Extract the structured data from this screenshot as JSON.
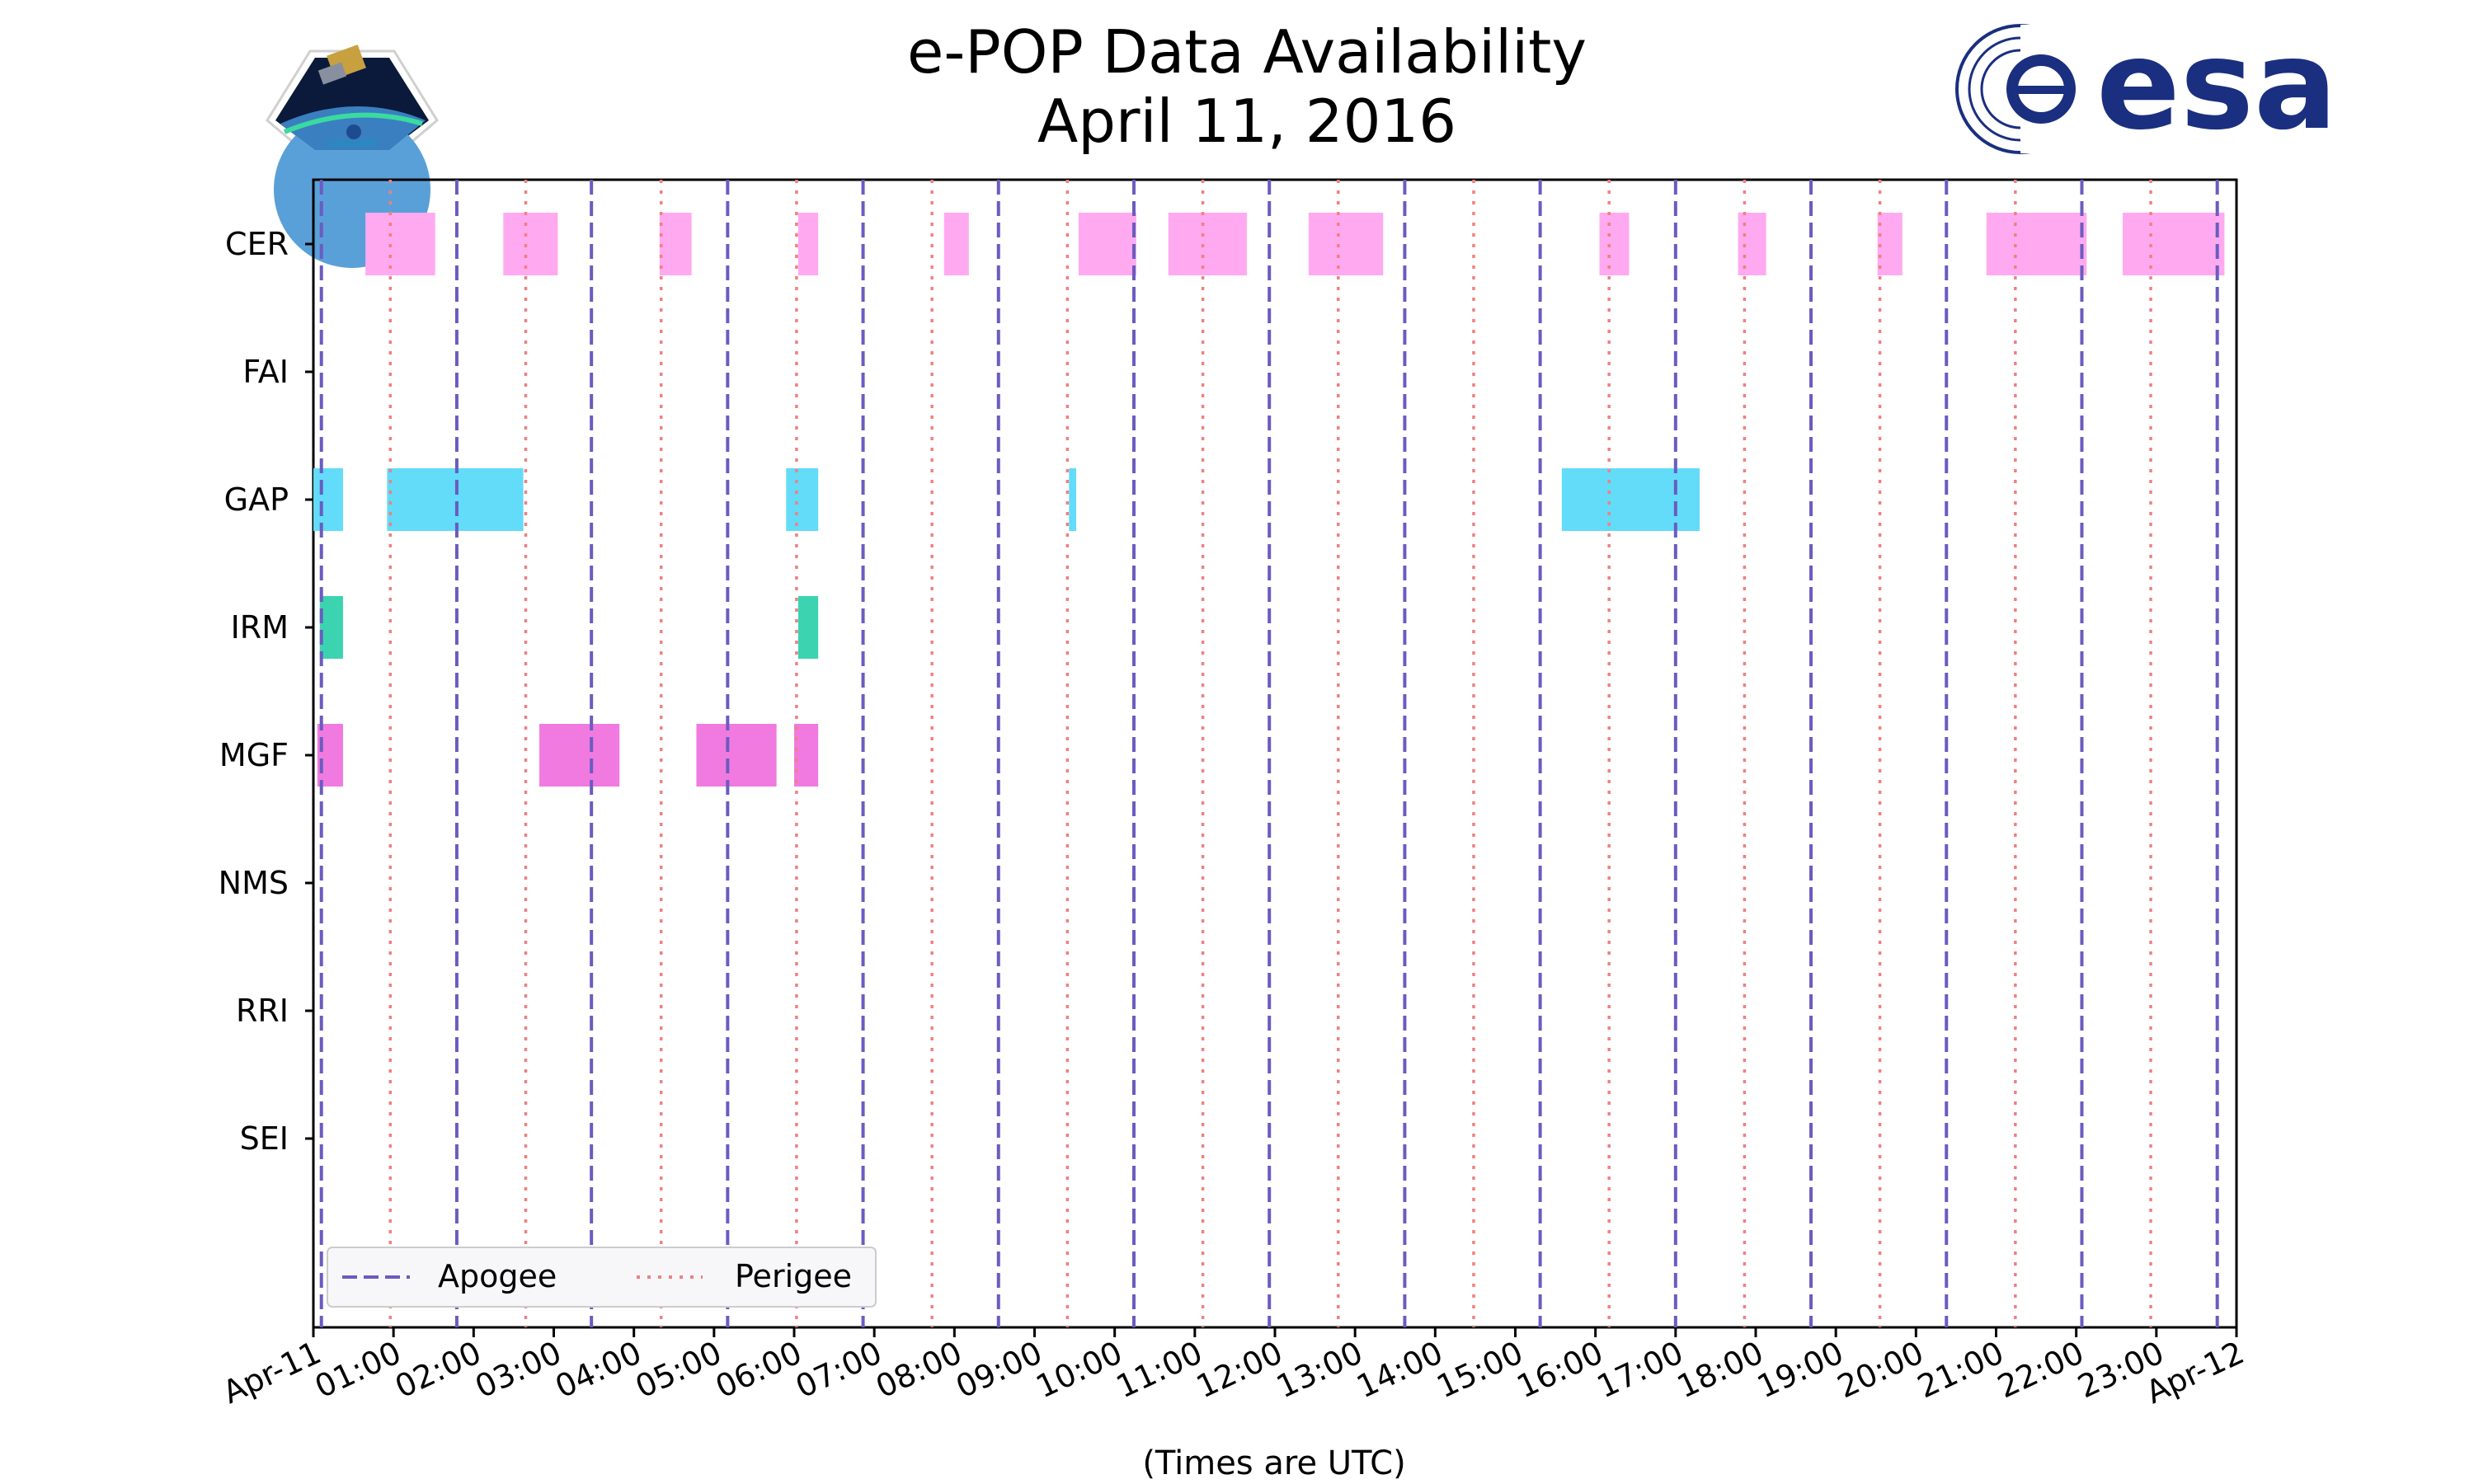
{
  "chart_data": {
    "type": "timeline",
    "title": "e-POP Data Availability",
    "subtitle": "April 11, 2016",
    "xlabel": "(Times are UTC)",
    "xlim_hours": [
      0,
      24
    ],
    "x_tick_labels": [
      "Apr-11",
      "01:00",
      "02:00",
      "03:00",
      "04:00",
      "05:00",
      "06:00",
      "07:00",
      "08:00",
      "09:00",
      "10:00",
      "11:00",
      "12:00",
      "13:00",
      "14:00",
      "15:00",
      "16:00",
      "17:00",
      "18:00",
      "19:00",
      "20:00",
      "21:00",
      "22:00",
      "23:00",
      "Apr-12"
    ],
    "instruments": [
      "CER",
      "FAI",
      "GAP",
      "IRM",
      "MGF",
      "NMS",
      "RRI",
      "SEI"
    ],
    "series": [
      {
        "name": "CER",
        "color": "#ffaaf0",
        "intervals": [
          [
            0.65,
            1.52
          ],
          [
            2.37,
            3.05
          ],
          [
            4.32,
            4.72
          ],
          [
            6.05,
            6.3
          ],
          [
            7.87,
            8.18
          ],
          [
            9.55,
            10.27
          ],
          [
            10.67,
            11.65
          ],
          [
            12.42,
            13.35
          ],
          [
            16.05,
            16.42
          ],
          [
            17.78,
            18.13
          ],
          [
            19.52,
            19.83
          ],
          [
            20.88,
            22.13
          ],
          [
            22.58,
            23.85
          ]
        ]
      },
      {
        "name": "FAI",
        "color": "#7cc7f0",
        "intervals": []
      },
      {
        "name": "GAP",
        "color": "#62dcf8",
        "intervals": [
          [
            0.0,
            0.37
          ],
          [
            0.92,
            2.62
          ],
          [
            5.9,
            6.3
          ],
          [
            9.43,
            9.52
          ],
          [
            15.58,
            17.3
          ]
        ]
      },
      {
        "name": "IRM",
        "color": "#3cd4b0",
        "intervals": [
          [
            0.08,
            0.37
          ],
          [
            6.05,
            6.3
          ]
        ]
      },
      {
        "name": "MGF",
        "color": "#f07ae0",
        "intervals": [
          [
            0.05,
            0.37
          ],
          [
            2.82,
            3.82
          ],
          [
            4.78,
            5.78
          ],
          [
            6.0,
            6.3
          ]
        ]
      },
      {
        "name": "NMS",
        "color": "#b3a6f5",
        "intervals": []
      },
      {
        "name": "RRI",
        "color": "#f0a5a5",
        "intervals": []
      },
      {
        "name": "SEI",
        "color": "#f7c76c",
        "intervals": []
      }
    ],
    "apogee_hours": [
      0.1,
      1.79,
      3.47,
      5.17,
      6.86,
      8.55,
      10.24,
      11.93,
      13.62,
      15.31,
      17.0,
      18.69,
      20.38,
      22.07,
      23.76
    ],
    "perigee_hours": [
      0.96,
      2.65,
      4.34,
      6.03,
      7.72,
      9.41,
      11.1,
      12.79,
      14.48,
      16.17,
      17.86,
      19.55,
      21.24,
      22.93
    ],
    "legend": {
      "apogee": "Apogee",
      "perigee": "Perigee",
      "apogee_color": "#6a5cc0",
      "perigee_color": "#f08080",
      "placement": "lower-left"
    }
  },
  "logos": {
    "left": "CASSIOPE",
    "right": "esa",
    "right_color": "#1b2f80"
  }
}
